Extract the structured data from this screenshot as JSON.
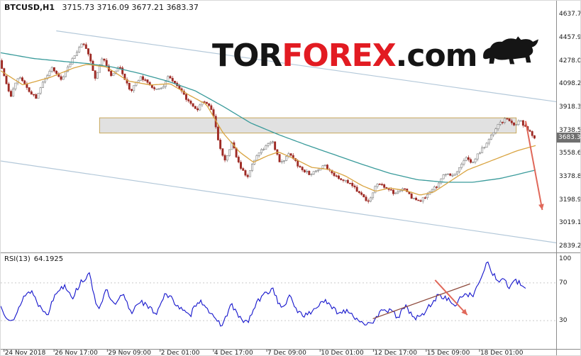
{
  "header": {
    "symbol": "BTCUSD,H1",
    "ohlc": "3715.73 3716.09 3677.21 3683.37"
  },
  "logo": {
    "tor": "TOR",
    "forex": "FOREX",
    "com": ".com"
  },
  "price_axis": {
    "current_price": "3683.37"
  },
  "rsi": {
    "name": "RSI(13)",
    "value": "64.1925"
  },
  "chart_data": [
    {
      "type": "candlestick",
      "symbol": "BTCUSD",
      "timeframe": "H1",
      "ohlc_current": {
        "open": 3715.73,
        "high": 3716.09,
        "low": 3677.21,
        "close": 3683.37
      },
      "ylim": [
        2790,
        4700
      ],
      "y_ticks": [
        4637.75,
        4457.9,
        4278.05,
        4098.2,
        3918.35,
        3738.5,
        3558.65,
        3378.8,
        3198.95,
        3019.1,
        2839.25
      ],
      "x_ticks": [
        {
          "label": "24 Nov 2018",
          "pos": 0.006
        },
        {
          "label": "26 Nov 17:00",
          "pos": 0.096
        },
        {
          "label": "29 Nov 09:00",
          "pos": 0.192
        },
        {
          "label": "2 Dec 01:00",
          "pos": 0.287
        },
        {
          "label": "4 Dec 17:00",
          "pos": 0.383
        },
        {
          "label": "7 Dec 09:00",
          "pos": 0.479
        },
        {
          "label": "10 Dec 01:00",
          "pos": 0.575
        },
        {
          "label": "12 Dec 17:00",
          "pos": 0.671
        },
        {
          "label": "15 Dec 09:00",
          "pos": 0.766
        },
        {
          "label": "18 Dec 01:00",
          "pos": 0.862
        }
      ],
      "candle_count": 235,
      "data_end_frac": 0.963,
      "up_color": "#ffffff",
      "up_border": "#7a7a7a",
      "down_color": "#9e2b25",
      "price_path": [
        [
          0.0,
          4280
        ],
        [
          0.02,
          4000
        ],
        [
          0.035,
          4170
        ],
        [
          0.05,
          4060
        ],
        [
          0.065,
          3990
        ],
        [
          0.08,
          4130
        ],
        [
          0.095,
          4230
        ],
        [
          0.11,
          4120
        ],
        [
          0.13,
          4280
        ],
        [
          0.148,
          4420
        ],
        [
          0.16,
          4330
        ],
        [
          0.172,
          4130
        ],
        [
          0.185,
          4310
        ],
        [
          0.2,
          4160
        ],
        [
          0.215,
          4240
        ],
        [
          0.235,
          4040
        ],
        [
          0.255,
          4150
        ],
        [
          0.275,
          4070
        ],
        [
          0.29,
          4050
        ],
        [
          0.305,
          4165
        ],
        [
          0.32,
          4085
        ],
        [
          0.34,
          3960
        ],
        [
          0.355,
          3890
        ],
        [
          0.368,
          3970
        ],
        [
          0.383,
          3900
        ],
        [
          0.395,
          3620
        ],
        [
          0.405,
          3500
        ],
        [
          0.418,
          3640
        ],
        [
          0.432,
          3470
        ],
        [
          0.445,
          3365
        ],
        [
          0.46,
          3520
        ],
        [
          0.477,
          3610
        ],
        [
          0.49,
          3665
        ],
        [
          0.505,
          3480
        ],
        [
          0.522,
          3560
        ],
        [
          0.54,
          3450
        ],
        [
          0.558,
          3400
        ],
        [
          0.572,
          3430
        ],
        [
          0.585,
          3465
        ],
        [
          0.6,
          3390
        ],
        [
          0.615,
          3360
        ],
        [
          0.63,
          3330
        ],
        [
          0.648,
          3255
        ],
        [
          0.663,
          3170
        ],
        [
          0.678,
          3320
        ],
        [
          0.695,
          3300
        ],
        [
          0.712,
          3245
        ],
        [
          0.728,
          3290
        ],
        [
          0.742,
          3210
        ],
        [
          0.758,
          3185
        ],
        [
          0.772,
          3250
        ],
        [
          0.786,
          3300
        ],
        [
          0.8,
          3405
        ],
        [
          0.815,
          3380
        ],
        [
          0.828,
          3450
        ],
        [
          0.84,
          3520
        ],
        [
          0.85,
          3480
        ],
        [
          0.862,
          3560
        ],
        [
          0.875,
          3620
        ],
        [
          0.886,
          3700
        ],
        [
          0.898,
          3790
        ],
        [
          0.912,
          3825
        ],
        [
          0.925,
          3780
        ],
        [
          0.938,
          3810
        ],
        [
          0.95,
          3745
        ],
        [
          0.963,
          3683
        ]
      ],
      "overlays": {
        "ma_fast": {
          "name": "MA fast (orange)",
          "color": "#d9a441",
          "points": [
            [
              0.0,
              4200
            ],
            [
              0.04,
              4090
            ],
            [
              0.09,
              4150
            ],
            [
              0.13,
              4220
            ],
            [
              0.155,
              4250
            ],
            [
              0.19,
              4230
            ],
            [
              0.23,
              4120
            ],
            [
              0.27,
              4090
            ],
            [
              0.305,
              4100
            ],
            [
              0.34,
              4010
            ],
            [
              0.37,
              3940
            ],
            [
              0.4,
              3720
            ],
            [
              0.43,
              3570
            ],
            [
              0.455,
              3490
            ],
            [
              0.48,
              3540
            ],
            [
              0.5,
              3570
            ],
            [
              0.53,
              3515
            ],
            [
              0.56,
              3450
            ],
            [
              0.59,
              3435
            ],
            [
              0.62,
              3385
            ],
            [
              0.65,
              3310
            ],
            [
              0.675,
              3265
            ],
            [
              0.7,
              3290
            ],
            [
              0.73,
              3270
            ],
            [
              0.755,
              3235
            ],
            [
              0.78,
              3260
            ],
            [
              0.81,
              3345
            ],
            [
              0.84,
              3430
            ],
            [
              0.87,
              3480
            ],
            [
              0.9,
              3530
            ],
            [
              0.93,
              3580
            ],
            [
              0.963,
              3620
            ]
          ]
        },
        "ma_slow": {
          "name": "MA slow (teal)",
          "color": "#3a9b9b",
          "points": [
            [
              0.0,
              4340
            ],
            [
              0.06,
              4295
            ],
            [
              0.12,
              4270
            ],
            [
              0.16,
              4255
            ],
            [
              0.2,
              4230
            ],
            [
              0.25,
              4180
            ],
            [
              0.3,
              4120
            ],
            [
              0.35,
              4045
            ],
            [
              0.4,
              3925
            ],
            [
              0.45,
              3795
            ],
            [
              0.5,
              3705
            ],
            [
              0.55,
              3625
            ],
            [
              0.6,
              3550
            ],
            [
              0.65,
              3475
            ],
            [
              0.7,
              3405
            ],
            [
              0.75,
              3355
            ],
            [
              0.8,
              3335
            ],
            [
              0.85,
              3335
            ],
            [
              0.9,
              3365
            ],
            [
              0.93,
              3395
            ],
            [
              0.963,
              3430
            ]
          ]
        },
        "channel": {
          "color": "#b3c8d9",
          "lines": [
            {
              "x1": 0.1,
              "p1": 4510,
              "x2": 1.0,
              "p2": 3960
            },
            {
              "x1": 0.0,
              "p1": 3500,
              "x2": 1.0,
              "p2": 2865
            }
          ]
        },
        "resistance_zone": {
          "x1": 0.178,
          "x2": 0.928,
          "price_top": 3835,
          "price_bottom": 3717,
          "fill": "#d9d9d9",
          "border": "#c9a85c"
        },
        "forecast_arrow": {
          "x1": 0.945,
          "p1": 3810,
          "x2": 0.975,
          "p2": 3120,
          "color": "#e0685a"
        }
      }
    },
    {
      "type": "line",
      "indicator": "RSI(13)",
      "current_value": 64.1925,
      "color": "#1414cc",
      "ylim": [
        0,
        100
      ],
      "levels": [
        70,
        30
      ],
      "y_ticks": [
        100,
        70,
        30
      ],
      "data_end_frac": 0.945,
      "points": [
        [
          0.0,
          45
        ],
        [
          0.01,
          35
        ],
        [
          0.025,
          30
        ],
        [
          0.04,
          55
        ],
        [
          0.055,
          62
        ],
        [
          0.07,
          45
        ],
        [
          0.085,
          38
        ],
        [
          0.1,
          60
        ],
        [
          0.115,
          68
        ],
        [
          0.13,
          55
        ],
        [
          0.145,
          72
        ],
        [
          0.16,
          78
        ],
        [
          0.175,
          42
        ],
        [
          0.19,
          62
        ],
        [
          0.205,
          45
        ],
        [
          0.22,
          58
        ],
        [
          0.235,
          38
        ],
        [
          0.25,
          52
        ],
        [
          0.265,
          44
        ],
        [
          0.28,
          38
        ],
        [
          0.295,
          58
        ],
        [
          0.31,
          52
        ],
        [
          0.325,
          42
        ],
        [
          0.34,
          34
        ],
        [
          0.355,
          52
        ],
        [
          0.37,
          46
        ],
        [
          0.385,
          30
        ],
        [
          0.4,
          26
        ],
        [
          0.415,
          48
        ],
        [
          0.43,
          32
        ],
        [
          0.445,
          28
        ],
        [
          0.46,
          48
        ],
        [
          0.475,
          58
        ],
        [
          0.49,
          64
        ],
        [
          0.505,
          42
        ],
        [
          0.52,
          55
        ],
        [
          0.535,
          40
        ],
        [
          0.55,
          35
        ],
        [
          0.565,
          42
        ],
        [
          0.58,
          52
        ],
        [
          0.595,
          44
        ],
        [
          0.61,
          38
        ],
        [
          0.625,
          42
        ],
        [
          0.64,
          32
        ],
        [
          0.655,
          28
        ],
        [
          0.67,
          24
        ],
        [
          0.685,
          44
        ],
        [
          0.7,
          40
        ],
        [
          0.715,
          34
        ],
        [
          0.73,
          45
        ],
        [
          0.745,
          32
        ],
        [
          0.76,
          36
        ],
        [
          0.775,
          48
        ],
        [
          0.79,
          58
        ],
        [
          0.805,
          52
        ],
        [
          0.82,
          46
        ],
        [
          0.835,
          60
        ],
        [
          0.85,
          55
        ],
        [
          0.862,
          72
        ],
        [
          0.875,
          93
        ],
        [
          0.885,
          82
        ],
        [
          0.895,
          70
        ],
        [
          0.905,
          76
        ],
        [
          0.915,
          65
        ],
        [
          0.928,
          72
        ],
        [
          0.945,
          64.19
        ]
      ],
      "trendline": {
        "color": "#8e4a3c",
        "x1": 0.67,
        "v1": 32,
        "x2": 0.845,
        "v2": 69
      },
      "forecast_arrow": {
        "color": "#e0685a",
        "x1": 0.782,
        "v1": 73,
        "x2": 0.84,
        "v2": 36
      }
    }
  ]
}
